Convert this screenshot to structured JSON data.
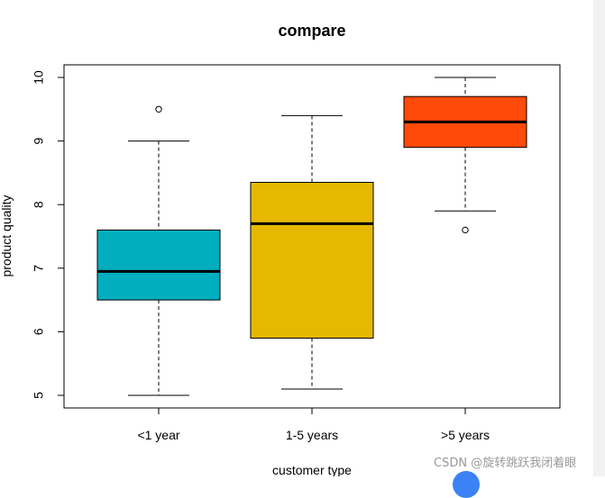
{
  "chart_data": {
    "type": "box",
    "title": "compare",
    "xlabel": "customer type",
    "ylabel": "product quality",
    "ylim": [
      4.8,
      10.2
    ],
    "yticks": [
      5,
      6,
      7,
      8,
      9,
      10
    ],
    "categories": [
      "<1 year",
      "1-5 years",
      ">5 years"
    ],
    "boxes": [
      {
        "category": "<1 year",
        "whisker_low": 5.0,
        "q1": 6.5,
        "median": 6.95,
        "q3": 7.6,
        "whisker_high": 9.0,
        "outliers": [
          9.5
        ],
        "color": "#00AEBE"
      },
      {
        "category": "1-5 years",
        "whisker_low": 5.1,
        "q1": 5.9,
        "median": 7.7,
        "q3": 8.35,
        "whisker_high": 9.4,
        "outliers": [],
        "color": "#E6B800"
      },
      {
        "category": ">5 years",
        "whisker_low": 7.9,
        "q1": 8.9,
        "median": 9.3,
        "q3": 9.7,
        "whisker_high": 10.0,
        "outliers": [
          7.6
        ],
        "color": "#FF4A0A"
      }
    ],
    "grid": false,
    "legend": "none"
  },
  "watermark": "CSDN @旋转跳跃我闭着眼",
  "colors": {
    "fab": "#3B82F6",
    "strip": "#f2f2f2"
  }
}
